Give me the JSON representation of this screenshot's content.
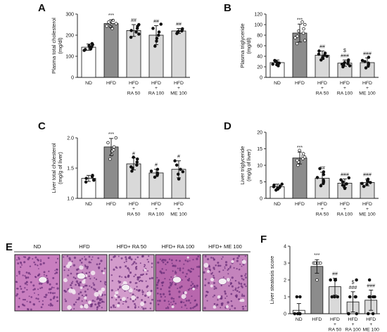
{
  "panels": {
    "A": "A",
    "B": "B",
    "C": "C",
    "D": "D",
    "E": "E",
    "F": "F"
  },
  "colors": {
    "ND": "#ffffff",
    "HFD": "#8c8c8c",
    "treat": "#d9d9d9",
    "tissue_stain": "#b45aa8"
  },
  "histology": {
    "labels": [
      "ND",
      "HFD",
      "HFD+ RA 50",
      "HFD+ RA 100",
      "HFD+ ME 100"
    ]
  },
  "chart_data": [
    {
      "panel": "A",
      "type": "bar",
      "ylabel": "Plasma total cholesterol\n(mg/dl)",
      "ylim": [
        0,
        300
      ],
      "yticks": [
        "0",
        "100",
        "200",
        "300"
      ],
      "categories": [
        "ND",
        "HFD",
        "HFD\n+\nRA 50",
        "HFD\n+\nRA 100",
        "HFD\n+\nME 100"
      ],
      "values": [
        143,
        255,
        222,
        200,
        220
      ],
      "errors": [
        15,
        18,
        28,
        45,
        12
      ],
      "points": [
        [
          128,
          135,
          140,
          145,
          150,
          155,
          160,
          132
        ],
        [
          232,
          243,
          250,
          258,
          262,
          270,
          240,
          255
        ],
        [
          190,
          205,
          222,
          232,
          242,
          250,
          215
        ],
        [
          148,
          172,
          200,
          215,
          232,
          252,
          185
        ],
        [
          208,
          215,
          220,
          225,
          230,
          218
        ]
      ],
      "significance": [
        "",
        "***",
        "##",
        "##",
        "##"
      ]
    },
    {
      "panel": "B",
      "type": "bar",
      "ylabel": "Plasma triglyceride\n(mg/dl)",
      "ylim": [
        0,
        120
      ],
      "yticks": [
        "0",
        "20",
        "40",
        "60",
        "80",
        "100",
        "120"
      ],
      "categories": [
        "ND",
        "HFD",
        "HFD\n+\nRA 50",
        "HFD\n+\nRA 100",
        "HFD\n+\nME 100"
      ],
      "values": [
        28,
        84,
        42,
        27,
        28
      ],
      "errors": [
        5,
        17,
        8,
        6,
        9
      ],
      "points": [
        [
          22,
          25,
          28,
          30,
          32,
          27,
          24
        ],
        [
          64,
          70,
          78,
          84,
          92,
          100,
          105,
          88,
          75
        ],
        [
          33,
          38,
          42,
          46,
          50,
          40,
          36,
          44
        ],
        [
          20,
          23,
          26,
          30,
          33,
          28,
          25,
          22
        ],
        [
          18,
          22,
          27,
          32,
          38,
          25,
          30
        ]
      ],
      "significance": [
        "",
        "***",
        "##",
        "$\n###",
        "###"
      ]
    },
    {
      "panel": "C",
      "type": "bar",
      "ylabel": "Liver total cholesterol\n(mg/g of liver)",
      "ylim": [
        1.0,
        2.0
      ],
      "yticks": [
        "1.0",
        "1.5",
        "2.0"
      ],
      "categories": [
        "ND",
        "HFD",
        "HFD\n+\nRA 50",
        "HFD\n+\nRA 100",
        "HFD\n+\nME 100"
      ],
      "values": [
        1.33,
        1.85,
        1.57,
        1.42,
        1.48
      ],
      "errors": [
        0.05,
        0.14,
        0.1,
        0.06,
        0.14
      ],
      "points": [
        [
          1.27,
          1.3,
          1.33,
          1.36,
          1.38,
          1.31
        ],
        [
          1.65,
          1.72,
          1.8,
          1.85,
          1.92,
          2.0,
          1.78
        ],
        [
          1.45,
          1.5,
          1.55,
          1.6,
          1.65,
          1.68,
          1.52
        ],
        [
          1.35,
          1.38,
          1.42,
          1.45,
          1.48,
          1.4
        ],
        [
          1.32,
          1.4,
          1.48,
          1.55,
          1.62,
          1.44
        ]
      ],
      "significance": [
        "",
        "***",
        "#",
        "#",
        "#"
      ]
    },
    {
      "panel": "D",
      "type": "bar",
      "ylabel": "Liver triglyceride\n(mg/g of liver)",
      "ylim": [
        0,
        20
      ],
      "yticks": [
        "0",
        "5",
        "10",
        "15",
        "20"
      ],
      "categories": [
        "ND",
        "HFD",
        "HFD\n+\nRA 50",
        "HFD\n+\nRA 100",
        "HFD\n+\nME 100"
      ],
      "values": [
        3.5,
        12.2,
        6.1,
        4.6,
        4.8
      ],
      "errors": [
        0.8,
        1.8,
        1.8,
        1.3,
        1.0
      ],
      "points": [
        [
          2.5,
          3.0,
          3.3,
          3.7,
          4.0,
          4.3,
          2.8,
          3.5
        ],
        [
          10.0,
          11.0,
          12.0,
          12.8,
          13.5,
          14.5,
          11.5,
          12.5
        ],
        [
          3.8,
          4.5,
          5.5,
          6.3,
          7.2,
          8.0,
          9.0,
          5.0
        ],
        [
          3.0,
          3.8,
          4.4,
          5.0,
          5.6,
          6.2,
          4.0
        ],
        [
          3.6,
          4.2,
          4.8,
          5.3,
          5.8,
          4.5,
          5.1
        ]
      ],
      "significance": [
        "",
        "***",
        "##",
        "###",
        "###"
      ]
    },
    {
      "panel": "F",
      "type": "bar",
      "ylabel": "Liver steatosis score",
      "ylim": [
        0,
        4
      ],
      "yticks": [
        "0",
        "1",
        "2",
        "3",
        "4"
      ],
      "categories": [
        "ND",
        "HFD",
        "HFD\n+\nRA 50",
        "HFD\n+\nRA 100",
        "HFD\n+\nME 100"
      ],
      "values": [
        0.2,
        2.8,
        1.6,
        0.7,
        0.8
      ],
      "errors": [
        0.4,
        0.4,
        0.5,
        0.6,
        0.6
      ],
      "points": [
        [
          0,
          0,
          0,
          0,
          0,
          1,
          1
        ],
        [
          2,
          3,
          3,
          3,
          3,
          3,
          3
        ],
        [
          1,
          1,
          1,
          2,
          2,
          2,
          2
        ],
        [
          0,
          0,
          0,
          1,
          1,
          1,
          2
        ],
        [
          0,
          0,
          1,
          1,
          1,
          1,
          2
        ]
      ],
      "significance": [
        "",
        "***",
        "##",
        "$\n###",
        "###"
      ]
    }
  ]
}
